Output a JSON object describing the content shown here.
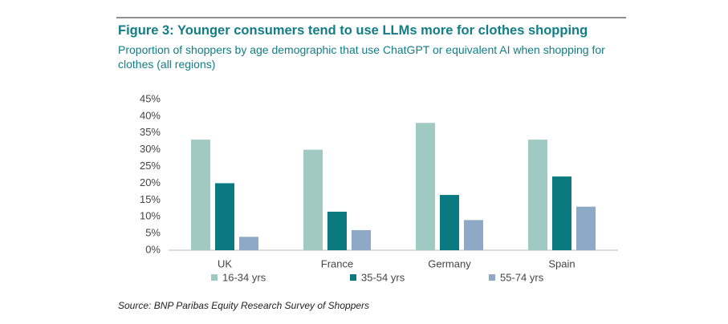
{
  "chart_data": {
    "type": "bar",
    "title": "Figure 3: Younger consumers tend to use LLMs more for clothes shopping",
    "subtitle": "Proportion of shoppers by age demographic that use ChatGPT or equivalent AI when shopping for clothes (all regions)",
    "source": "Source:  BNP Paribas Equity Research Survey of Shoppers",
    "categories": [
      "UK",
      "France",
      "Germany",
      "Spain"
    ],
    "series": [
      {
        "name": "16-34 yrs",
        "color": "#9fc9c1",
        "values": [
          33,
          30,
          38,
          33
        ]
      },
      {
        "name": "35-54 yrs",
        "color": "#0b7a80",
        "values": [
          20,
          11.5,
          16.5,
          22
        ]
      },
      {
        "name": "55-74 yrs",
        "color": "#8ea9c6",
        "values": [
          4,
          6,
          9,
          13
        ]
      }
    ],
    "ylim": [
      0,
      45
    ],
    "yticks": [
      {
        "value": 0,
        "label": "0%"
      },
      {
        "value": 5,
        "label": "5%"
      },
      {
        "value": 10,
        "label": "10%"
      },
      {
        "value": 15,
        "label": "15%"
      },
      {
        "value": 20,
        "label": "20%"
      },
      {
        "value": 25,
        "label": "25%"
      },
      {
        "value": 30,
        "label": "30%"
      },
      {
        "value": 35,
        "label": "35%"
      },
      {
        "value": 40,
        "label": "40%"
      },
      {
        "value": 45,
        "label": "45%"
      }
    ],
    "grid": false
  }
}
